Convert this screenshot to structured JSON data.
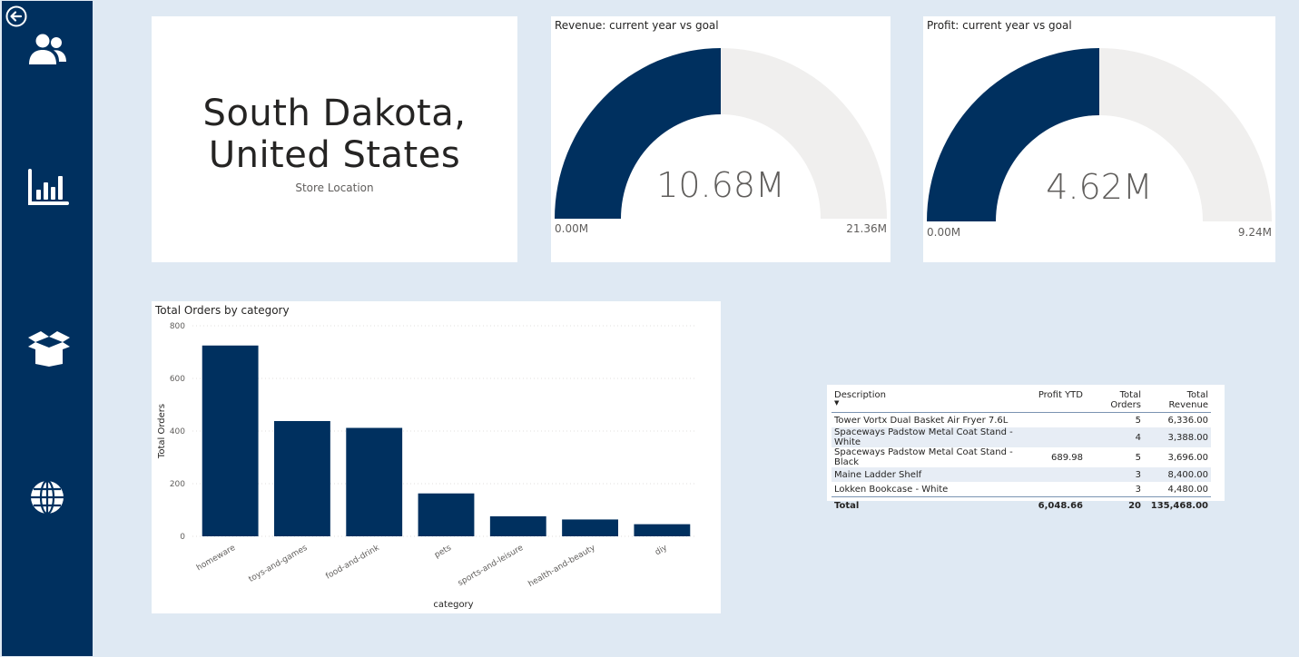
{
  "sidebar": {
    "items": [
      {
        "icon": "users-icon"
      },
      {
        "icon": "bar-chart-icon"
      },
      {
        "icon": "open-box-icon"
      },
      {
        "icon": "globe-icon"
      }
    ],
    "back_icon": "back-arrow-icon"
  },
  "location_card": {
    "line1": "South Dakota,",
    "line2": "United States",
    "subtitle": "Store Location"
  },
  "revenue_gauge": {
    "title": "Revenue: current year vs goal",
    "value_label": "10.68M",
    "min_label": "0.00M",
    "max_label": "21.36M",
    "value": 10.68,
    "min": 0,
    "max": 21.36,
    "fill_color": "#00305f",
    "track_color": "#f0efee"
  },
  "profit_gauge": {
    "title": "Profit: current year vs goal",
    "value_label": "4.62M",
    "min_label": "0.00M",
    "max_label": "9.24M",
    "value": 4.62,
    "min": 0,
    "max": 9.24,
    "fill_color": "#00305f",
    "track_color": "#f0efee"
  },
  "chart_data": {
    "type": "bar",
    "title": "Total Orders by category",
    "xlabel": "category",
    "ylabel": "Total Orders",
    "categories": [
      "homeware",
      "toys-and-games",
      "food-and-drink",
      "pets",
      "sports-and-leisure",
      "health-and-beauty",
      "diy"
    ],
    "values": [
      725,
      438,
      412,
      163,
      76,
      64,
      46
    ],
    "ylim": [
      0,
      800
    ],
    "yticks": [
      "800",
      "600",
      "400",
      "200",
      "0"
    ],
    "grid": true,
    "bar_color": "#00305f"
  },
  "table": {
    "headers": [
      "Description",
      "Profit YTD",
      "Total Orders",
      "Total Revenue"
    ],
    "sort_indicator": "▼",
    "rows": [
      {
        "description": "Tower Vortx Dual Basket Air Fryer 7.6L",
        "profit": "",
        "orders": "5",
        "revenue": "6,336.00"
      },
      {
        "description": "Spaceways Padstow Metal Coat Stand - White",
        "profit": "",
        "orders": "4",
        "revenue": "3,388.00"
      },
      {
        "description": "Spaceways Padstow Metal Coat Stand - Black",
        "profit": "689.98",
        "orders": "5",
        "revenue": "3,696.00"
      },
      {
        "description": "Maine Ladder Shelf",
        "profit": "",
        "orders": "3",
        "revenue": "8,400.00"
      },
      {
        "description": "Lokken Bookcase - White",
        "profit": "",
        "orders": "3",
        "revenue": "4,480.00"
      }
    ],
    "total": {
      "label": "Total",
      "profit": "6,048.66",
      "orders": "20",
      "revenue": "135,468.00"
    }
  }
}
